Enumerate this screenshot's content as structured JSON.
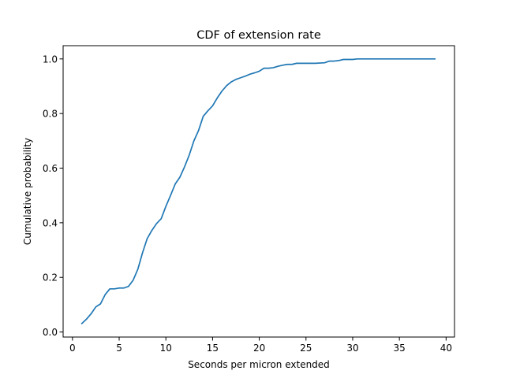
{
  "chart_data": {
    "type": "line",
    "title": "CDF of extension rate",
    "xlabel": "Seconds per micron extended",
    "ylabel": "Cumulative probability",
    "xlim": [
      -1.0,
      40.9
    ],
    "ylim": [
      -0.0185,
      1.0485
    ],
    "xticks": [
      0,
      5,
      10,
      15,
      20,
      25,
      30,
      35,
      40
    ],
    "yticks": [
      0.0,
      0.2,
      0.4,
      0.6,
      0.8,
      1.0
    ],
    "xtick_labels": [
      "0",
      "5",
      "10",
      "15",
      "20",
      "25",
      "30",
      "35",
      "40"
    ],
    "ytick_labels": [
      "0.0",
      "0.2",
      "0.4",
      "0.6",
      "0.8",
      "1.0"
    ],
    "grid": false,
    "series": [
      {
        "color": "#1f77b4",
        "x": [
          1.0,
          1.5,
          2.0,
          2.5,
          3.0,
          3.5,
          4.0,
          4.5,
          5.0,
          5.5,
          6.0,
          6.5,
          7.0,
          7.5,
          8.0,
          8.5,
          9.0,
          9.5,
          10.0,
          10.5,
          11.0,
          11.5,
          12.0,
          12.5,
          13.0,
          13.5,
          14.0,
          14.5,
          15.0,
          15.5,
          16.0,
          16.5,
          17.0,
          17.5,
          18.0,
          18.5,
          19.0,
          19.5,
          20.0,
          20.5,
          21.0,
          21.5,
          22.0,
          22.5,
          23.0,
          23.5,
          24.0,
          25.0,
          26.0,
          27.0,
          27.5,
          28.0,
          28.5,
          29.0,
          29.5,
          30.0,
          30.5,
          31.0,
          32.0,
          34.0,
          36.0,
          38.0,
          38.8
        ],
        "y": [
          0.031,
          0.047,
          0.067,
          0.092,
          0.103,
          0.137,
          0.158,
          0.158,
          0.161,
          0.161,
          0.167,
          0.19,
          0.23,
          0.29,
          0.342,
          0.372,
          0.397,
          0.415,
          0.46,
          0.5,
          0.542,
          0.567,
          0.605,
          0.648,
          0.7,
          0.738,
          0.79,
          0.81,
          0.828,
          0.857,
          0.882,
          0.902,
          0.916,
          0.925,
          0.931,
          0.937,
          0.944,
          0.949,
          0.955,
          0.966,
          0.966,
          0.968,
          0.973,
          0.977,
          0.98,
          0.98,
          0.984,
          0.984,
          0.984,
          0.986,
          0.992,
          0.992,
          0.994,
          0.998,
          0.998,
          0.998,
          1.0,
          1.0,
          1.0,
          1.0,
          1.0,
          1.0,
          1.0
        ]
      }
    ]
  }
}
